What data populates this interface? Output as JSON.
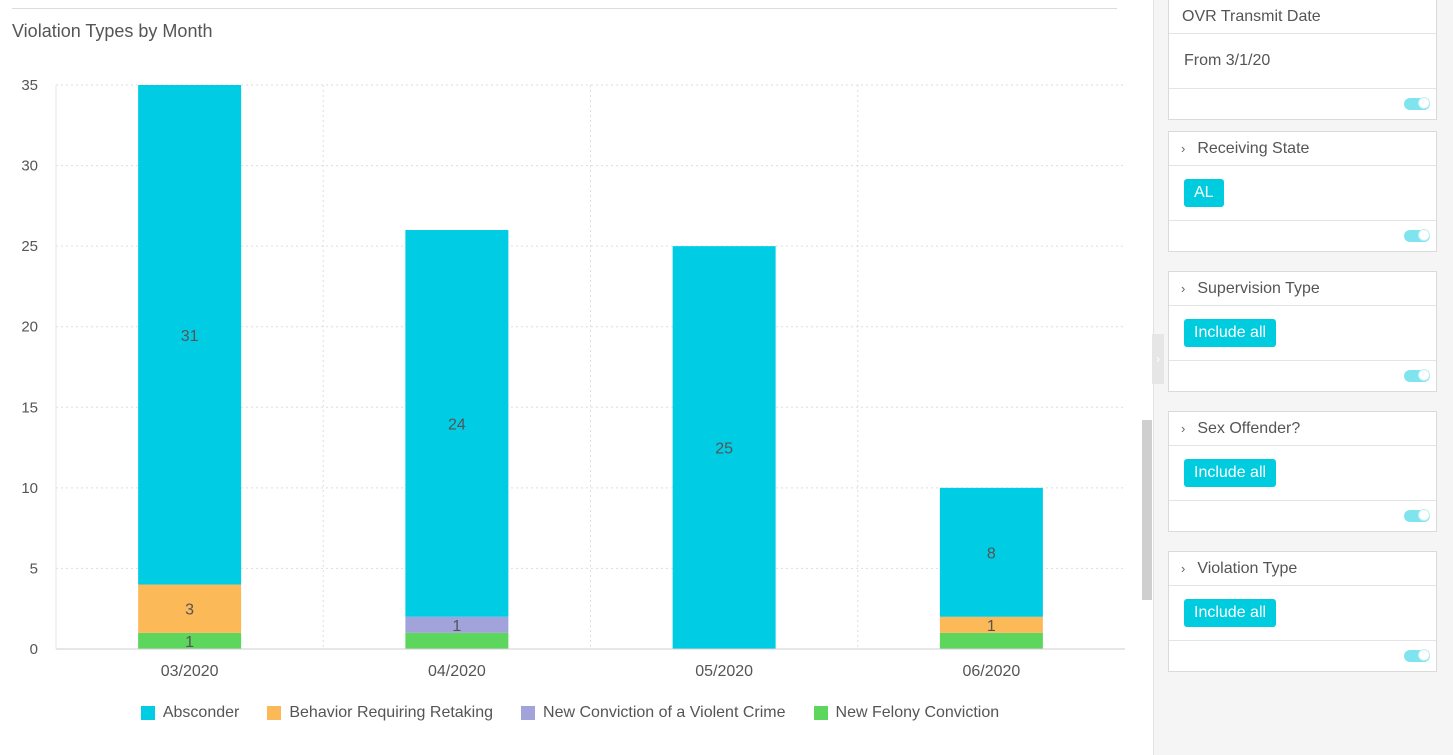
{
  "chart_data": {
    "type": "bar",
    "stacked": true,
    "title": "Violation Types by Month",
    "categories": [
      "03/2020",
      "04/2020",
      "05/2020",
      "06/2020"
    ],
    "ylim": [
      0,
      35
    ],
    "yticks": [
      0,
      5,
      10,
      15,
      20,
      25,
      30,
      35
    ],
    "grid": true,
    "legend_position": "bottom",
    "series": [
      {
        "name": "New Felony Conviction",
        "color": "#5cd65c",
        "values": [
          1,
          1,
          0,
          1
        ],
        "labels": [
          "1",
          "",
          "",
          ""
        ]
      },
      {
        "name": "New Conviction of a Violent Crime",
        "color": "#a3a3dc",
        "values": [
          0,
          1,
          0,
          0
        ],
        "labels": [
          "",
          "1",
          "",
          ""
        ]
      },
      {
        "name": "Behavior Requiring Retaking",
        "color": "#fbb957",
        "values": [
          3,
          0,
          0,
          1
        ],
        "labels": [
          "3",
          "",
          "",
          "1"
        ]
      },
      {
        "name": "Absconder",
        "color": "#00cde4",
        "values": [
          31,
          24,
          25,
          8
        ],
        "labels": [
          "31",
          "24",
          "25",
          "8"
        ]
      }
    ],
    "legend_order": [
      "Absconder",
      "Behavior Requiring Retaking",
      "New Conviction of a Violent Crime",
      "New Felony Conviction"
    ]
  },
  "filters": {
    "transmit_date": {
      "title": "OVR Transmit Date",
      "value": "From 3/1/20"
    },
    "receiving_state": {
      "title": "Receiving State",
      "value": "AL"
    },
    "supervision_type": {
      "title": "Supervision Type",
      "value": "Include all"
    },
    "sex_offender": {
      "title": "Sex Offender?",
      "value": "Include all"
    },
    "violation_type": {
      "title": "Violation Type",
      "value": "Include all"
    }
  },
  "icons": {
    "chevron": "chevron-right-icon",
    "toggle": "toggle-switch-icon"
  }
}
